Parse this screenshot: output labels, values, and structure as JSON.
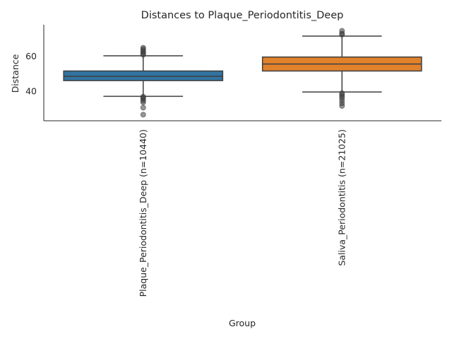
{
  "chart_data": {
    "type": "box",
    "title": "Distances to Plaque_Periodontitis_Deep",
    "xlabel": "Group",
    "ylabel": "Distance",
    "ylim": [
      23,
      78
    ],
    "yticks": [
      40,
      60
    ],
    "grid": false,
    "groups": [
      {
        "label": "Plaque_Periodontitis_Deep (n=10440)",
        "color": "#3274a1",
        "whisker_low": 37,
        "q1": 46,
        "median": 48.5,
        "q3": 51.5,
        "whisker_high": 60.2,
        "outliers": [
          26.5,
          30.5,
          33.5,
          34.5,
          35.5,
          36.2,
          36.8,
          60.8,
          61.5,
          62.3,
          63.2,
          64.0,
          64.8
        ]
      },
      {
        "label": "Saliva_Periodontitis (n=21025)",
        "color": "#e1812c",
        "whisker_low": 39.5,
        "q1": 51.5,
        "median": 55.5,
        "q3": 59.5,
        "whisker_high": 71.5,
        "outliers": [
          31.5,
          33.0,
          34.5,
          36.0,
          37.0,
          38.0,
          38.8,
          72.3,
          73.0,
          74.5
        ]
      }
    ]
  }
}
